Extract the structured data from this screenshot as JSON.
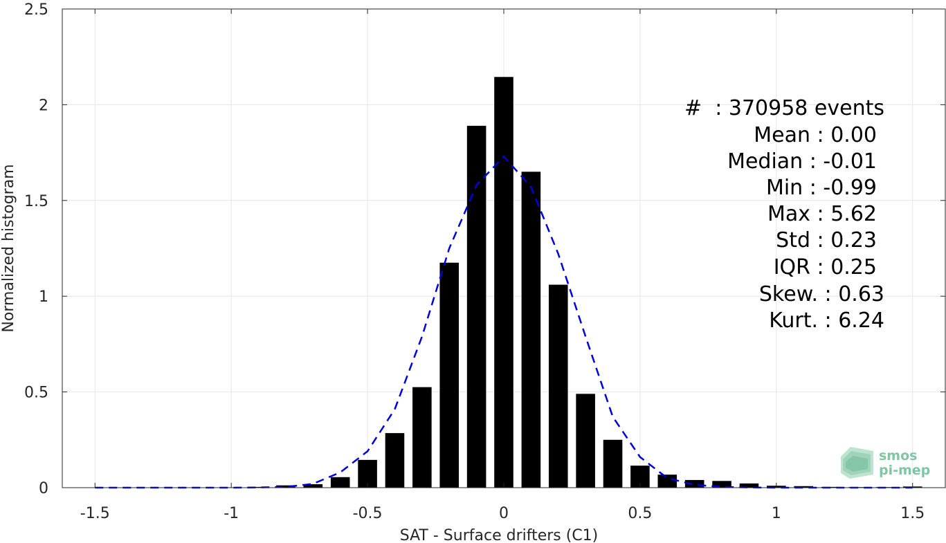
{
  "chart_data": {
    "type": "bar",
    "xlabel": "SAT - Surface drifters (C1)",
    "ylabel": "Normalized histogram",
    "xlim": [
      -1.62,
      1.62
    ],
    "ylim": [
      0,
      2.5
    ],
    "xticks": [
      -1.5,
      -1,
      -0.5,
      0,
      0.5,
      1,
      1.5
    ],
    "xtick_labels": [
      "-1.5",
      "-1",
      "-0.5",
      "0",
      "0.5",
      "1",
      "1.5"
    ],
    "yticks": [
      0,
      0.5,
      1,
      1.5,
      2,
      2.5
    ],
    "ytick_labels": [
      "0",
      "0.5",
      "1",
      "1.5",
      "2",
      "2.5"
    ],
    "grid": true,
    "bar_color": "#000000",
    "bar_width": 0.07,
    "bins": [
      {
        "x": -1.0,
        "value": 0.002
      },
      {
        "x": -0.9,
        "value": 0.004
      },
      {
        "x": -0.8,
        "value": 0.012
      },
      {
        "x": -0.7,
        "value": 0.018
      },
      {
        "x": -0.6,
        "value": 0.055
      },
      {
        "x": -0.5,
        "value": 0.145
      },
      {
        "x": -0.4,
        "value": 0.285
      },
      {
        "x": -0.3,
        "value": 0.525
      },
      {
        "x": -0.2,
        "value": 1.175
      },
      {
        "x": -0.1,
        "value": 1.89
      },
      {
        "x": 0.0,
        "value": 2.145
      },
      {
        "x": 0.1,
        "value": 1.65
      },
      {
        "x": 0.2,
        "value": 1.06
      },
      {
        "x": 0.3,
        "value": 0.49
      },
      {
        "x": 0.4,
        "value": 0.25
      },
      {
        "x": 0.5,
        "value": 0.115
      },
      {
        "x": 0.6,
        "value": 0.068
      },
      {
        "x": 0.7,
        "value": 0.04
      },
      {
        "x": 0.8,
        "value": 0.035
      },
      {
        "x": 0.9,
        "value": 0.022
      },
      {
        "x": 1.0,
        "value": 0.01
      },
      {
        "x": 1.1,
        "value": 0.008
      },
      {
        "x": 1.2,
        "value": 0.004
      },
      {
        "x": 1.3,
        "value": 0.003
      },
      {
        "x": 1.4,
        "value": 0.003
      },
      {
        "x": 1.5,
        "value": 0.006
      }
    ],
    "fit_curve": {
      "color": "#0000dd",
      "style": "dashed",
      "x": [
        -1.5,
        -1.4,
        -1.3,
        -1.2,
        -1.1,
        -1.0,
        -0.9,
        -0.8,
        -0.7,
        -0.6,
        -0.5,
        -0.4,
        -0.3,
        -0.2,
        -0.1,
        0.0,
        0.1,
        0.2,
        0.3,
        0.4,
        0.5,
        0.6,
        0.7,
        0.8,
        0.9,
        1.0,
        1.1,
        1.2,
        1.3,
        1.4,
        1.5
      ],
      "y": [
        0.0,
        0.0,
        0.0,
        0.0,
        0.0,
        0.0,
        0.001,
        0.004,
        0.02,
        0.08,
        0.19,
        0.41,
        0.79,
        1.25,
        1.58,
        1.73,
        1.57,
        1.22,
        0.79,
        0.37,
        0.16,
        0.05,
        0.015,
        0.004,
        0.001,
        0.0,
        0.0,
        0.0,
        0.0,
        0.0,
        0.0
      ]
    },
    "annotations": {
      "lines": [
        "#  : 370958 events",
        "Mean : 0.00",
        "Median : -0.01",
        "Min : -0.99",
        "Max : 5.62",
        "Std : 0.23",
        "IQR : 0.25",
        "Skew. : 0.63",
        "Kurt. : 6.24"
      ]
    }
  },
  "logo": {
    "name": "smos-pi-mep-logo",
    "line1": "smos",
    "line2": "pi-mep",
    "color": "#7fc6a4"
  }
}
